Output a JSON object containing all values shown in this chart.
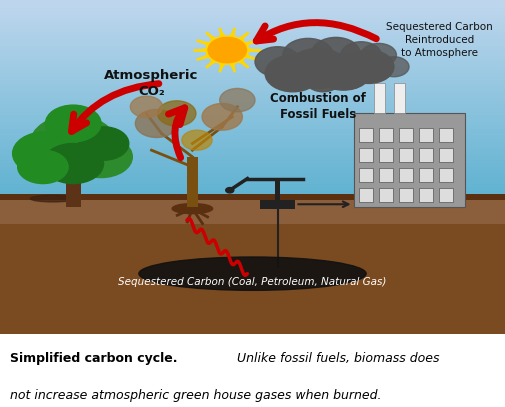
{
  "title_bold": "Simplified carbon cycle.",
  "title_italic": " Unlike fossil fuels, biomass does\nnot increase atmospheric green house gases when burned.",
  "label_atm_co2": "Atmospheric\nCO₂",
  "label_seq_carbon_top": "Sequestered Carbon\nReintroduced\nto Atmosphere",
  "label_combustion": "Combustion of\nFossil Fuels",
  "label_seq_carbon_bottom": "Sequestered Carbon (Coal, Petroleum, Natural Gas)",
  "sky_color": "#7ec8d8",
  "sky_bottom_color": "#b8dfe8",
  "ground_color": "#8B5E3C",
  "underground_color": "#7a4a20",
  "arrow_color": "#cc0000",
  "smoke_color": "#555555",
  "building_color": "#999999",
  "building_dark": "#555555",
  "window_color": "#dddddd",
  "tree_trunk": "#5C3317",
  "tree_green1": "#2d8a2d",
  "tree_green2": "#228B22",
  "tree_green3": "#1a6b1a",
  "dead_trunk": "#8B6914",
  "dead_col1": "#8B7355",
  "dead_col2": "#A0784A",
  "oil_color": "#111111",
  "pump_color": "#222222",
  "sun_outer": "#FFD700",
  "sun_inner": "#FFA500",
  "fig_width": 5.05,
  "fig_height": 4.07,
  "dpi": 100
}
